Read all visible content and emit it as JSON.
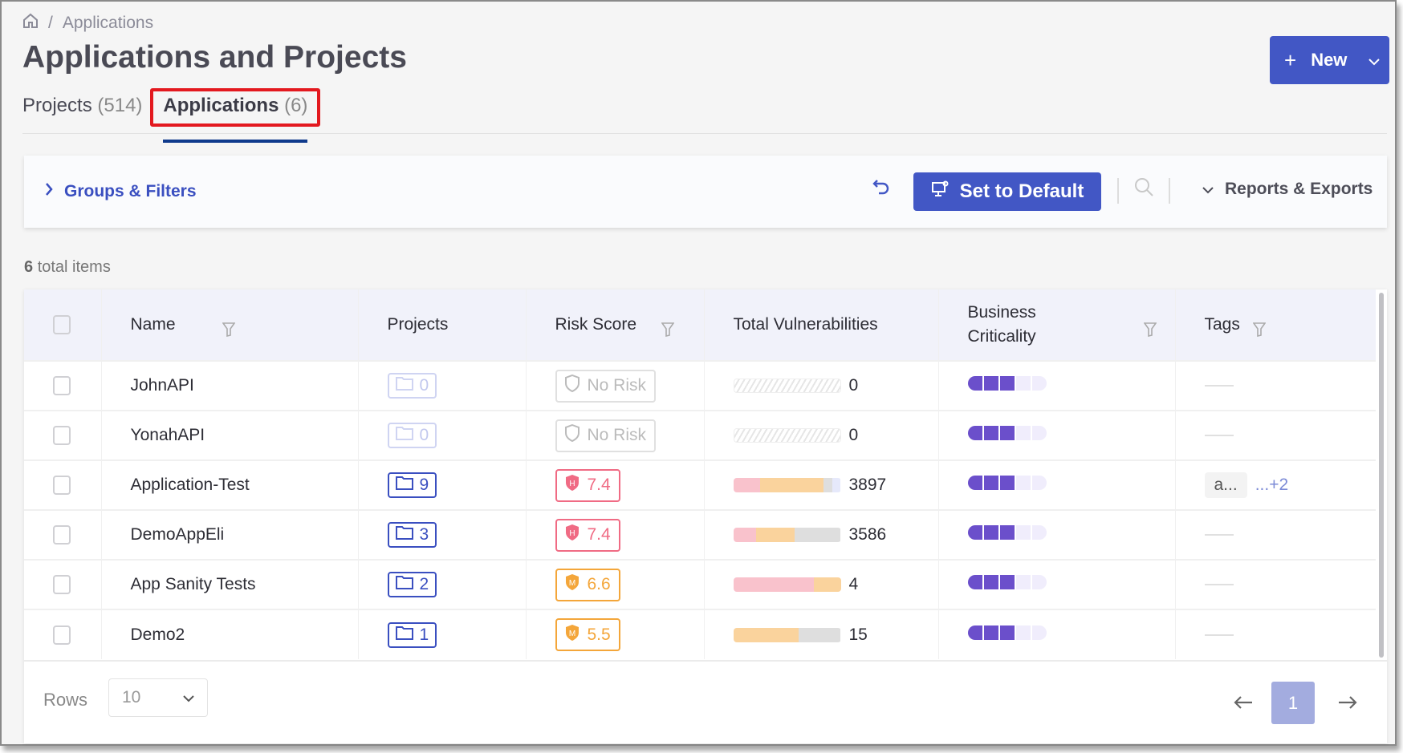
{
  "breadcrumb": {
    "current": "Applications"
  },
  "header": {
    "title": "Applications and Projects",
    "new_label": "New"
  },
  "tabs": [
    {
      "label": "Projects",
      "count": "(514)"
    },
    {
      "label": "Applications",
      "count": "(6)"
    }
  ],
  "toolbar": {
    "groups_filters": "Groups & Filters",
    "set_default": "Set to Default",
    "reports": "Reports & Exports"
  },
  "summary": {
    "count": "6",
    "suffix": "total items"
  },
  "columns": [
    "Name",
    "Projects",
    "Risk Score",
    "Total Vulnerabilities",
    "Business Criticality",
    "Tags"
  ],
  "rows": [
    {
      "name": "JohnAPI",
      "projects": "0",
      "risk": "No Risk",
      "risk_level": "none",
      "vuln_total": "0",
      "vuln_segments_pct": [],
      "criticality": 3,
      "tags": []
    },
    {
      "name": "YonahAPI",
      "projects": "0",
      "risk": "No Risk",
      "risk_level": "none",
      "vuln_total": "0",
      "vuln_segments_pct": [],
      "criticality": 3,
      "tags": []
    },
    {
      "name": "Application-Test",
      "projects": "9",
      "risk": "7.4",
      "risk_level": "H",
      "vuln_total": "3897",
      "vuln_segments_pct": [
        25,
        59,
        8,
        8
      ],
      "criticality": 3,
      "tags": [
        "a..."
      ],
      "tags_more": "...+2"
    },
    {
      "name": "DemoAppEli",
      "projects": "3",
      "risk": "7.4",
      "risk_level": "H",
      "vuln_total": "3586",
      "vuln_segments_pct": [
        21,
        36,
        43,
        0
      ],
      "criticality": 3,
      "tags": []
    },
    {
      "name": "App Sanity Tests",
      "projects": "2",
      "risk": "6.6",
      "risk_level": "M",
      "vuln_total": "4",
      "vuln_segments_pct": [
        75,
        25,
        0,
        0
      ],
      "criticality": 3,
      "tags": []
    },
    {
      "name": "Demo2",
      "projects": "1",
      "risk": "5.5",
      "risk_level": "M",
      "vuln_total": "15",
      "vuln_segments_pct": [
        0,
        61,
        39,
        0
      ],
      "criticality": 3,
      "tags": []
    }
  ],
  "criticality_max": 5,
  "colors": {
    "accent": "#4257c5",
    "critical": "#f9c2cc",
    "high": "#fad39d",
    "medium": "#dedede",
    "low": "#e6e9fb",
    "criticality": "#6b4fcb"
  },
  "footer": {
    "rows_label": "Rows",
    "rows_value": "10",
    "page": "1"
  }
}
